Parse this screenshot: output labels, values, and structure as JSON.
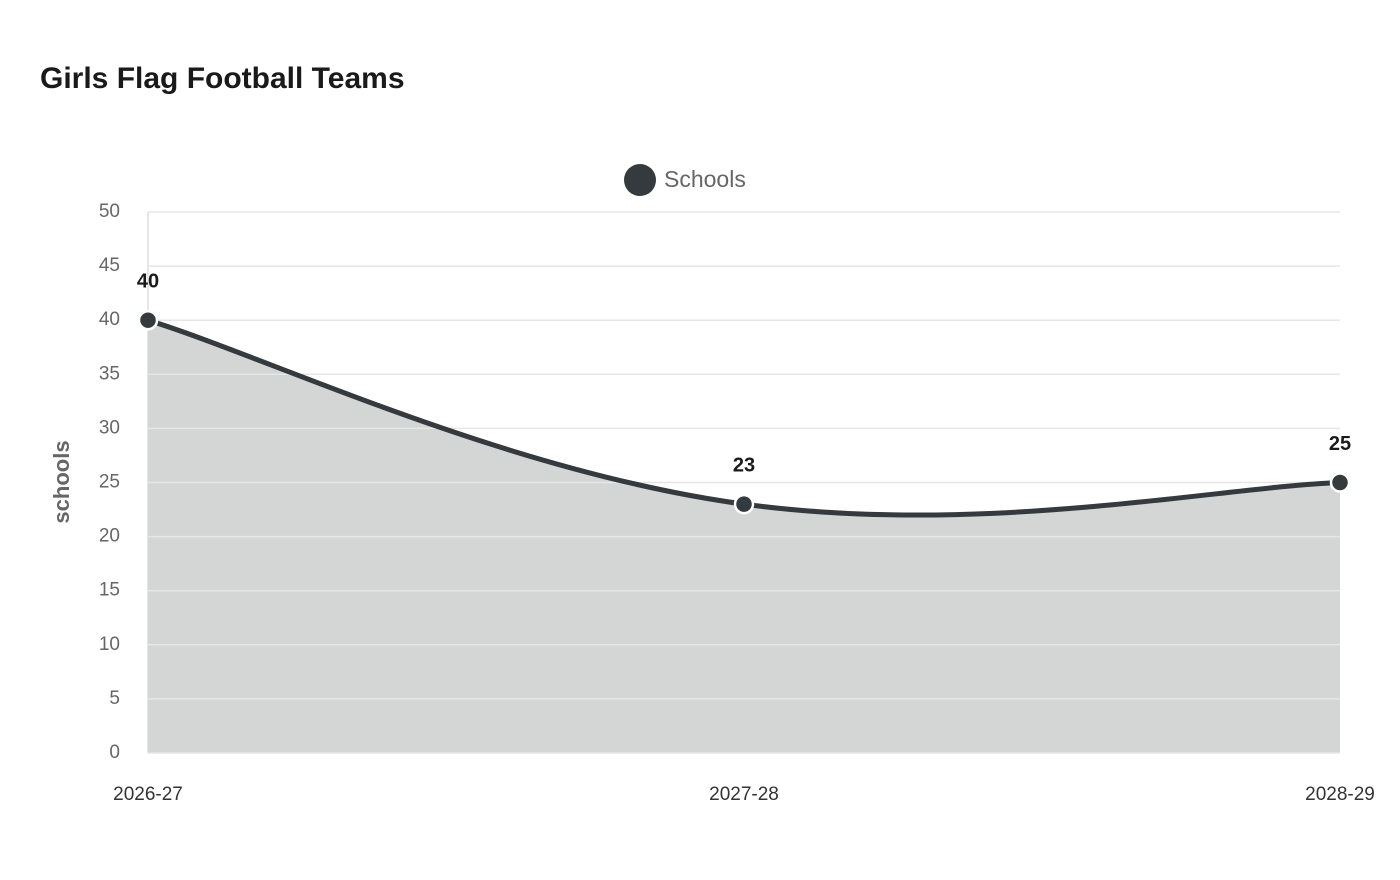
{
  "chart_data": {
    "type": "area",
    "title": "Girls Flag Football Teams",
    "y_label": "schools",
    "categories": [
      "2026-27",
      "2027-28",
      "2028-29"
    ],
    "series": [
      {
        "name": "Schools",
        "color": "#343a3d",
        "fill": "#d4d5d5",
        "values": [
          40,
          23,
          25
        ]
      }
    ],
    "ylim": [
      0,
      50
    ],
    "yticks": [
      0,
      5,
      10,
      15,
      20,
      25,
      30,
      35,
      40,
      45,
      50
    ],
    "grid": true,
    "legend": "top",
    "smooth": true,
    "data_labels": true
  }
}
